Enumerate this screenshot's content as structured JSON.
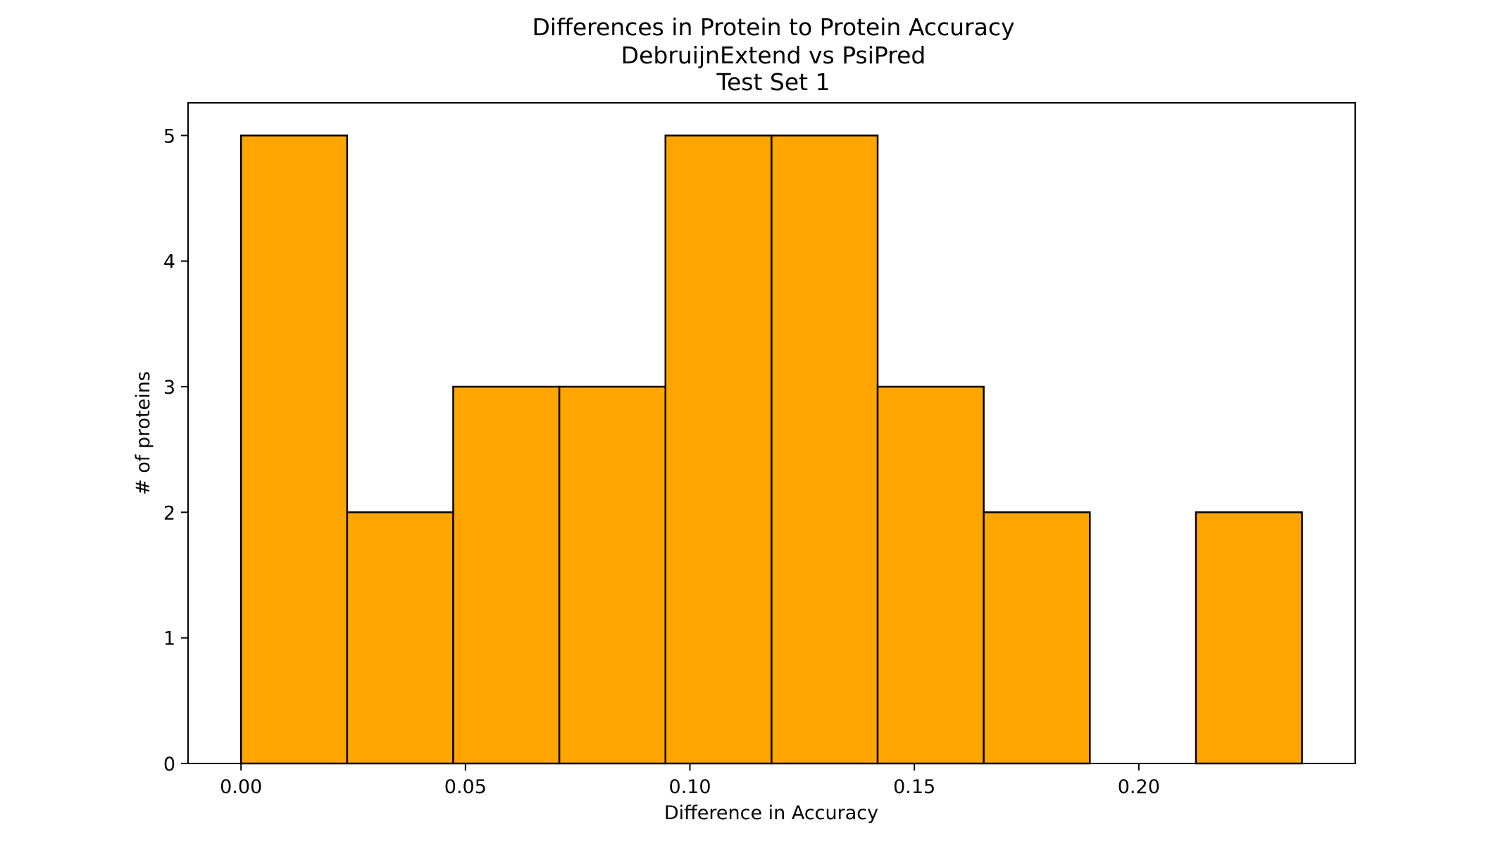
{
  "chart_data": {
    "type": "bar",
    "title_lines": [
      "Differences in Protein to Protein Accuracy",
      "DebruijnExtend vs PsiPred",
      "Test Set 1"
    ],
    "xlabel": "Difference in Accuracy",
    "ylabel": "# of proteins",
    "bin_edges": [
      0.0,
      0.02364,
      0.04727,
      0.07091,
      0.09455,
      0.11818,
      0.14182,
      0.16545,
      0.18909,
      0.21273,
      0.23636
    ],
    "counts": [
      5,
      2,
      3,
      3,
      5,
      5,
      3,
      2,
      0,
      2
    ],
    "xlim": [
      -0.0118,
      0.2482
    ],
    "ylim": [
      0,
      5.26
    ],
    "xticks": [
      0.0,
      0.05,
      0.1,
      0.15,
      0.2
    ],
    "xtick_labels": [
      "0.00",
      "0.05",
      "0.10",
      "0.15",
      "0.20"
    ],
    "yticks": [
      0,
      1,
      2,
      3,
      4,
      5
    ],
    "ytick_labels": [
      "0",
      "1",
      "2",
      "3",
      "4",
      "5"
    ],
    "bar_color": "#FFA500",
    "edge_color": "#000000",
    "grid": false,
    "legend": "none"
  }
}
